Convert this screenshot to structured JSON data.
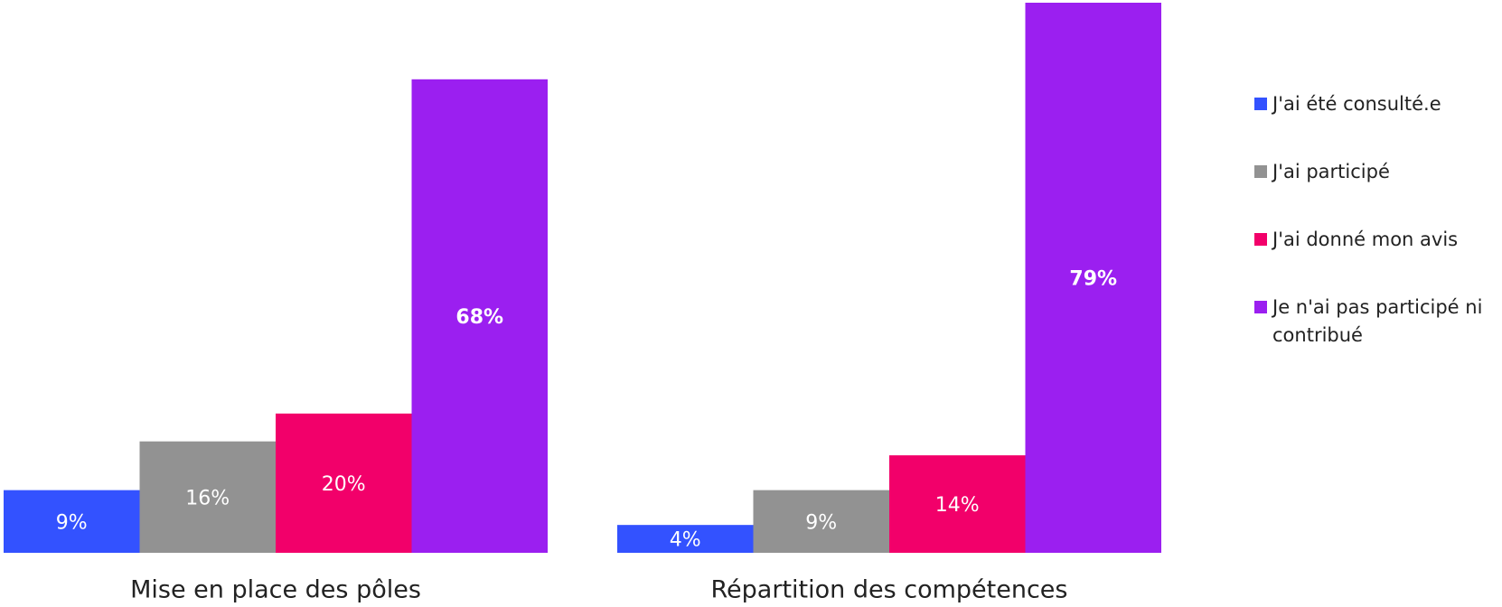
{
  "chart_data": {
    "type": "bar",
    "categories": [
      "Mise en place des pôles",
      "Répartition des compétences"
    ],
    "series": [
      {
        "name": "J'ai été consulté.e",
        "color": "#3352ff",
        "values": [
          9,
          4
        ],
        "value_labels": [
          "9%",
          "4%"
        ]
      },
      {
        "name": "J'ai participé",
        "color": "#929292",
        "values": [
          16,
          9
        ],
        "value_labels": [
          "16%",
          "9%"
        ]
      },
      {
        "name": "J'ai donné mon avis",
        "color": "#f2006a",
        "values": [
          20,
          14
        ],
        "value_labels": [
          "20%",
          "14%"
        ]
      },
      {
        "name": "Je n'ai pas participé ni contribué",
        "color": "#9b1ff0",
        "values": [
          68,
          79
        ],
        "value_labels": [
          "68%",
          "79%"
        ]
      }
    ],
    "legend": "right"
  }
}
